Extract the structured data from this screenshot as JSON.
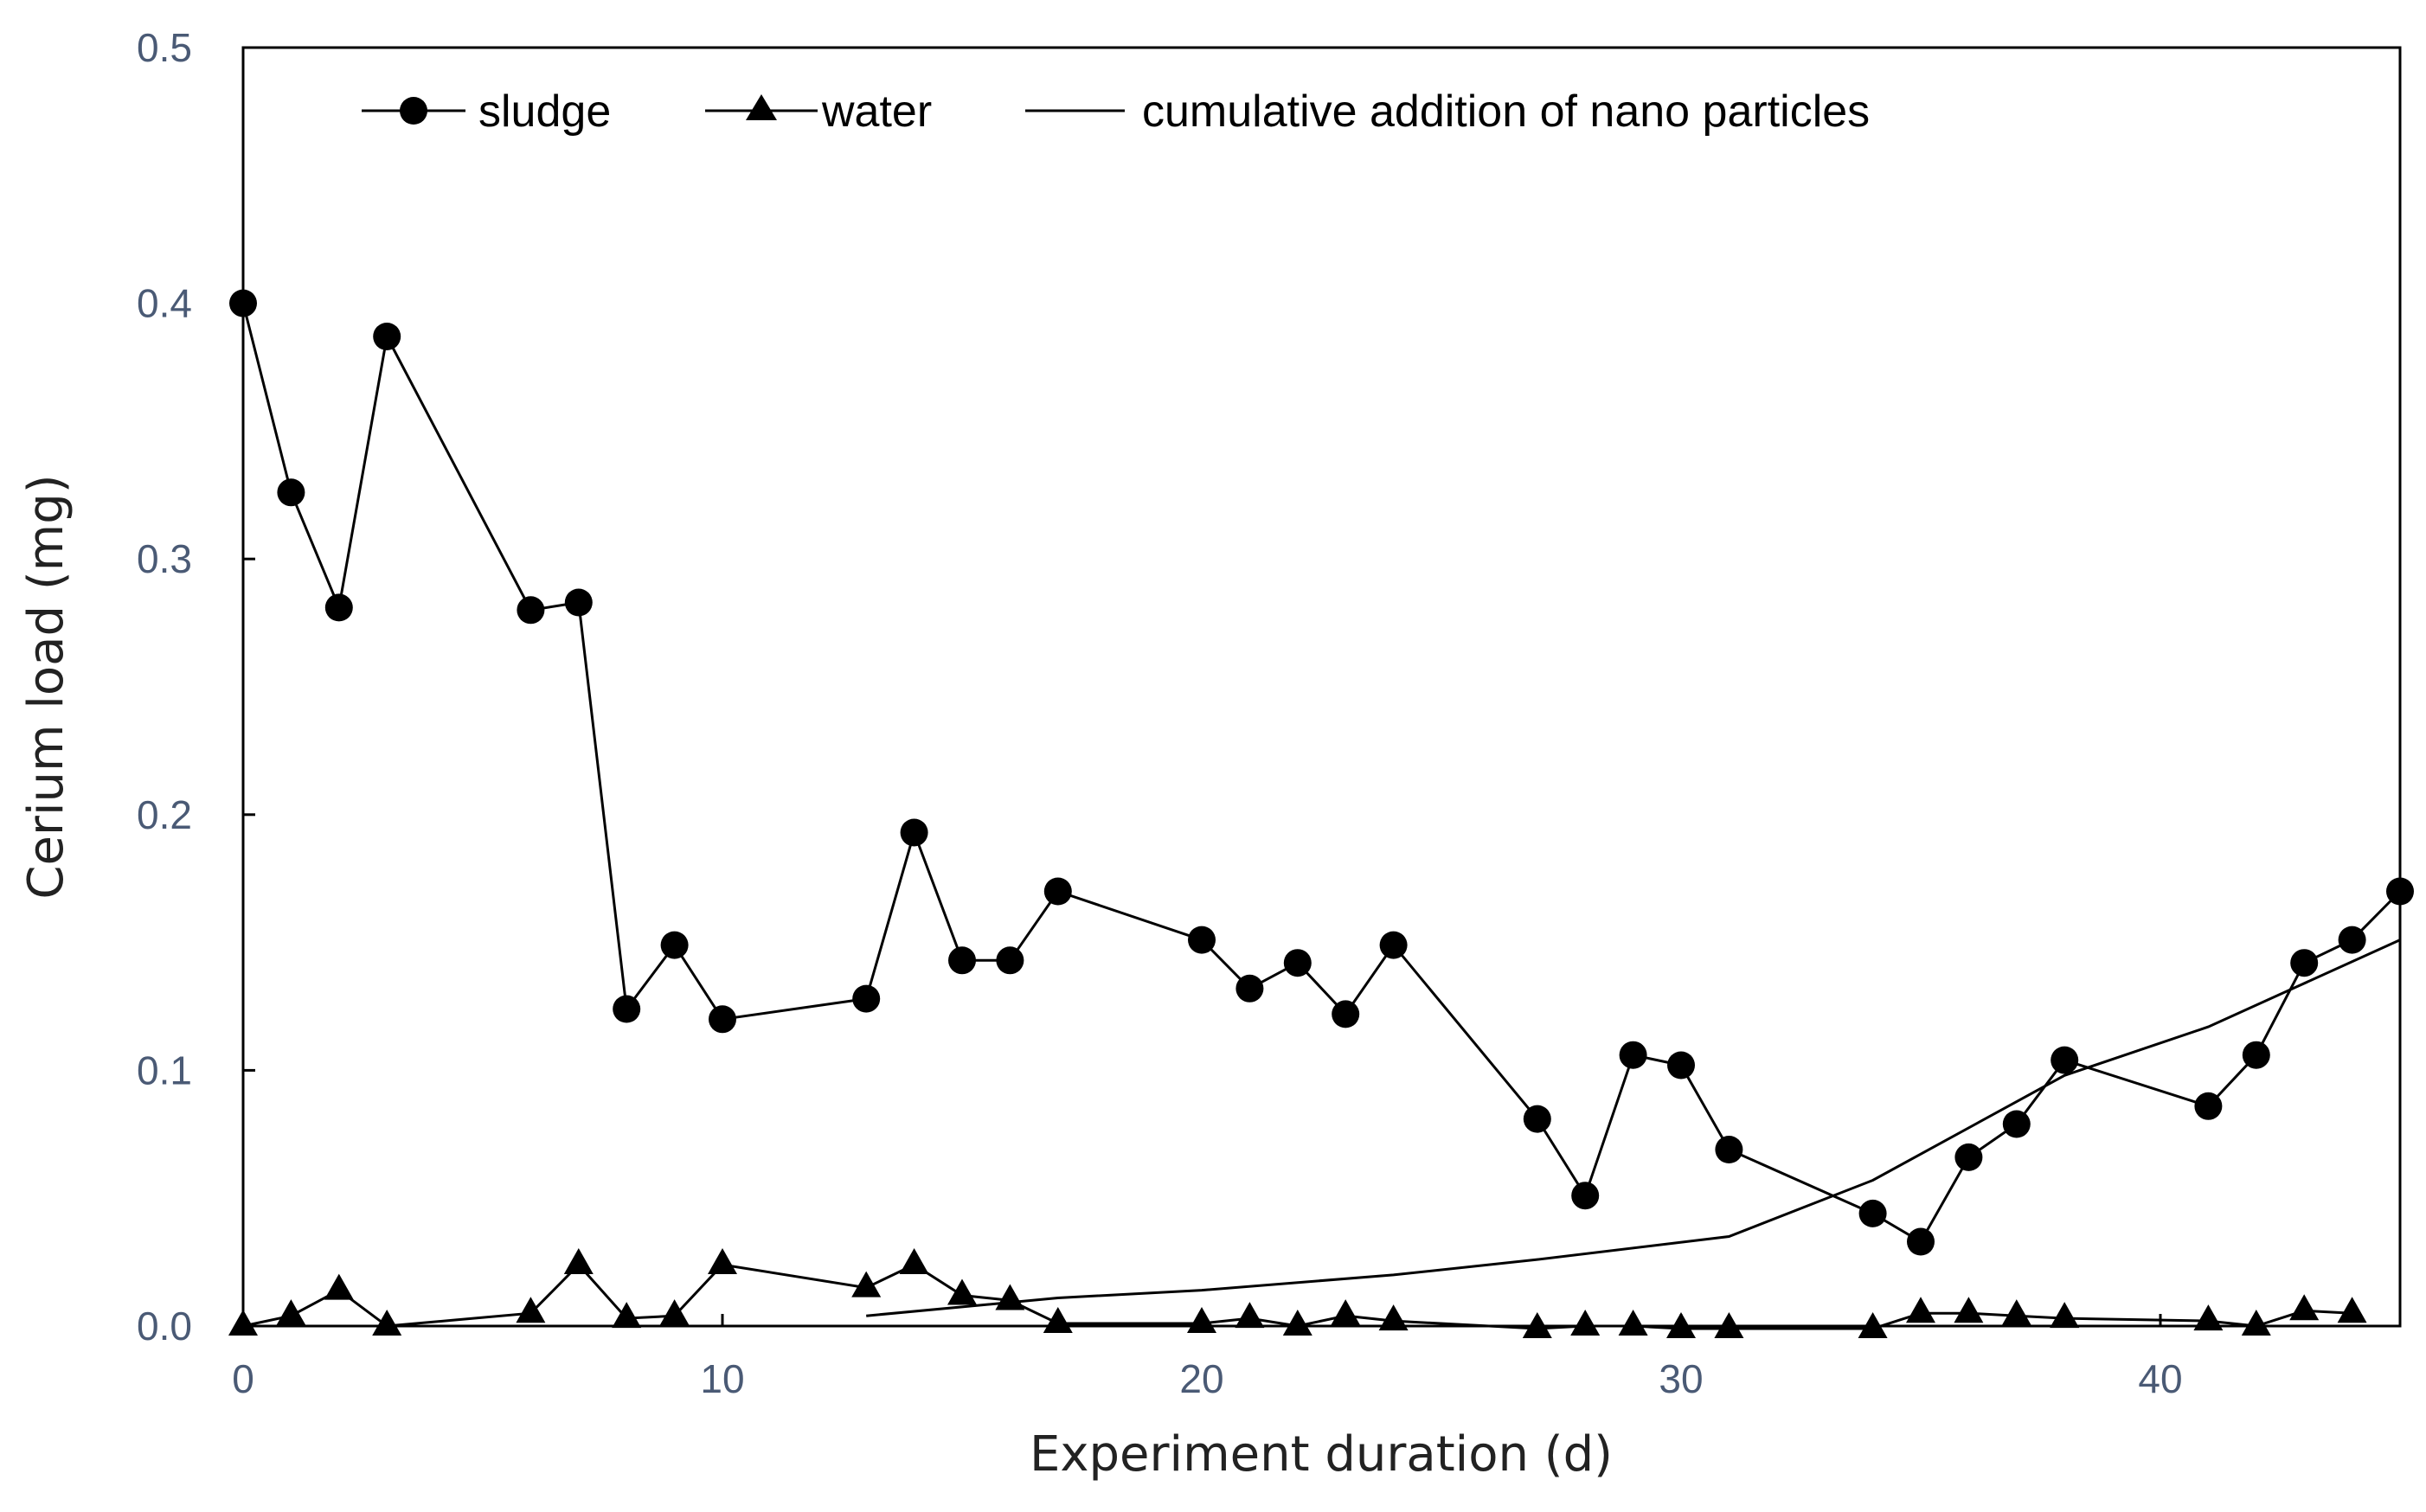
{
  "chart_data": {
    "type": "line",
    "title": "",
    "xlabel": "Experiment duration (d)",
    "ylabel": "Cerium load (mg)",
    "xlim": [
      0,
      45
    ],
    "ylim": [
      0.0,
      0.5
    ],
    "x_ticks": [
      "0",
      "10",
      "20",
      "30",
      "40"
    ],
    "x_tick_values": [
      0,
      10,
      20,
      30,
      40
    ],
    "y_ticks": [
      "0.0",
      "0.1",
      "0.2",
      "0.3",
      "0.4",
      "0.5"
    ],
    "y_tick_values": [
      0.0,
      0.1,
      0.2,
      0.3,
      0.4,
      0.5
    ],
    "grid": false,
    "legend_position": "top",
    "series": [
      {
        "name": "sludge",
        "marker": "circle",
        "x": [
          0,
          1,
          2,
          3,
          6,
          7,
          8,
          9,
          10,
          13,
          14,
          15,
          16,
          17,
          20,
          21,
          22,
          23,
          24,
          27,
          28,
          29,
          30,
          31,
          34,
          35,
          36,
          37,
          38,
          41,
          42,
          43,
          44,
          45
        ],
        "y": [
          0.4,
          0.326,
          0.281,
          0.387,
          0.28,
          0.283,
          0.124,
          0.149,
          0.12,
          0.128,
          0.193,
          0.143,
          0.143,
          0.17,
          0.151,
          0.132,
          0.142,
          0.122,
          0.149,
          0.081,
          0.051,
          0.106,
          0.102,
          0.069,
          0.044,
          0.033,
          0.066,
          0.079,
          0.104,
          0.086,
          0.106,
          0.142,
          0.151,
          0.17
        ]
      },
      {
        "name": "water",
        "marker": "triangle",
        "x": [
          0,
          1,
          2,
          3,
          6,
          7,
          8,
          9,
          10,
          13,
          14,
          15,
          16,
          17,
          20,
          21,
          22,
          23,
          24,
          27,
          28,
          29,
          30,
          31,
          34,
          35,
          36,
          37,
          38,
          41,
          42,
          43,
          44
        ],
        "y": [
          0.0,
          0.004,
          0.014,
          0.0,
          0.005,
          0.024,
          0.003,
          0.004,
          0.024,
          0.015,
          0.024,
          0.012,
          0.01,
          0.001,
          0.001,
          0.003,
          0.0,
          0.004,
          0.002,
          -0.001,
          0.0,
          0.0,
          -0.001,
          -0.001,
          -0.001,
          0.005,
          0.005,
          0.004,
          0.003,
          0.002,
          0.0,
          0.006,
          0.005
        ]
      },
      {
        "name": "cumulative addition of nano particles",
        "marker": "none",
        "x": [
          13,
          17,
          20,
          24,
          27,
          31,
          34,
          38,
          41,
          45
        ],
        "y": [
          0.004,
          0.011,
          0.014,
          0.02,
          0.026,
          0.035,
          0.057,
          0.098,
          0.117,
          0.151
        ]
      }
    ]
  }
}
